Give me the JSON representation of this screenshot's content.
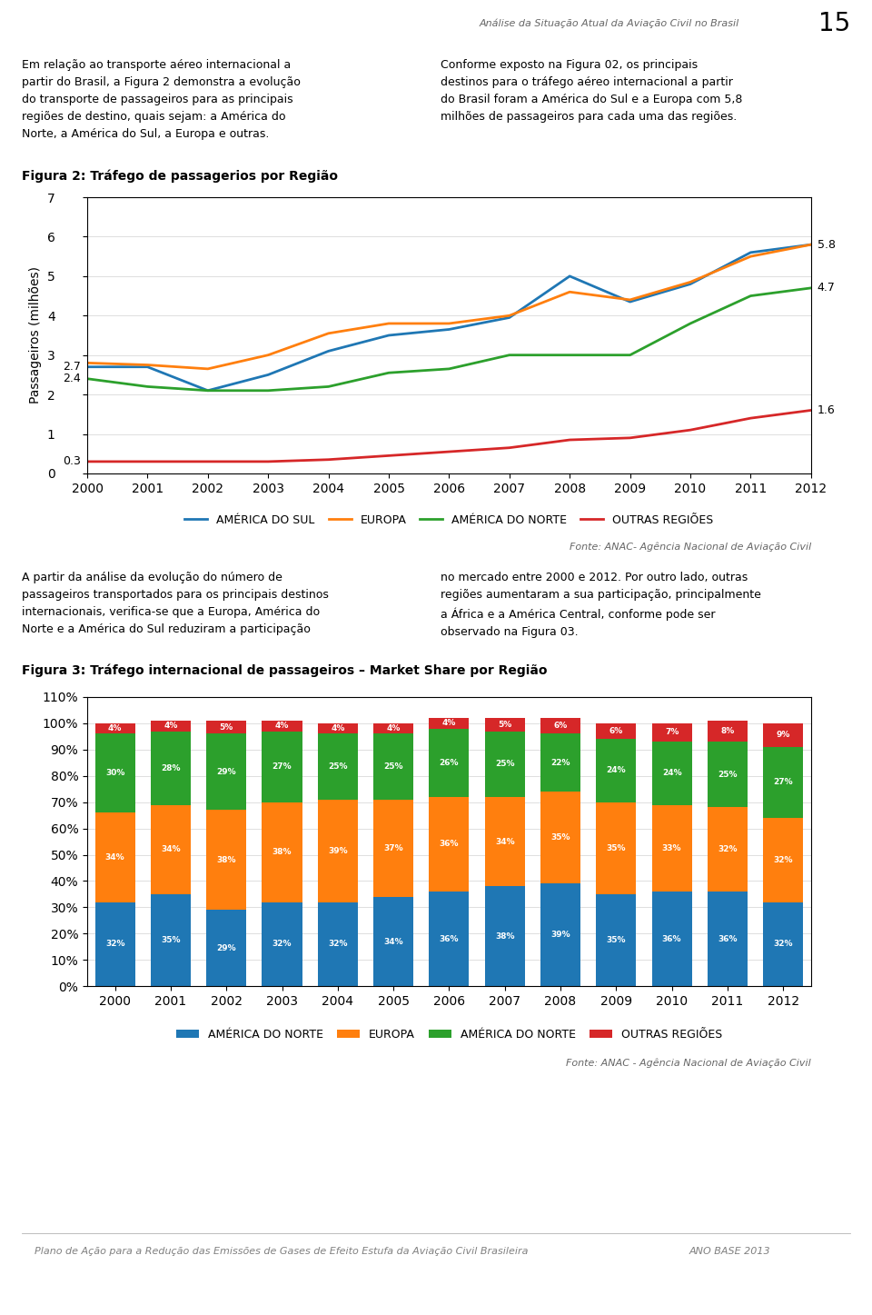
{
  "page": {
    "header": "Análise da Situação Atual da Aviação Civil no Brasil",
    "page_number": "15",
    "text_columns": [
      [
        "Em relação ao transporte aéreo internacional a\npartir do Brasil, a Figura 2 demonstra a evolução\ndo transporte de passageiros para as principais\nregiões de destino, quais sejam: a América do\nNorte, a América do Sul, a Europa e outras.",
        "Conforme exposto na Figura 02, os principais\ndestinos para o tráfego aéreo internacional a partir\ndo Brasil foram a América do Sul e a Europa com 5,8\nmilhões de passageiros para cada uma das regiões."
      ],
      [
        "A partir da análise da evolução do número de\npassageiros transportados para os principais destinos\ninternacionais, verifica-se que a Europa, América do\nNorte e a América do Sul reduziram a participação",
        "no mercado entre 2000 e 2012. Por outro lado, outras\nregiões aumentaram a sua participação, principalmente\na África e a América Central, conforme pode ser\nobservado na Figura 03."
      ]
    ],
    "footer": [
      "Plano de Ação para a Redução das Emissões de Gases de Efeito Estufa da Aviação Civil Brasileira",
      "ANO BASE 2013"
    ]
  },
  "chart_data": [
    {
      "type": "line",
      "title": "Figura 2: Tráfego de passagerios por Região",
      "ylabel": "Passageiros (milhões)",
      "x": [
        2000,
        2001,
        2002,
        2003,
        2004,
        2005,
        2006,
        2007,
        2008,
        2009,
        2010,
        2011,
        2012
      ],
      "xlim": [
        2000,
        2012
      ],
      "xticks": [
        2000,
        2001,
        2002,
        2003,
        2004,
        2005,
        2006,
        2007,
        2008,
        2009,
        2010,
        2011,
        2012
      ],
      "ylim": [
        0,
        7
      ],
      "yticks": [
        0,
        1,
        2,
        3,
        4,
        5,
        6,
        7
      ],
      "grid": true,
      "legend": "upper center",
      "series": [
        {
          "name": "AMÉRICA DO SUL",
          "values": [
            2.7,
            2.7,
            2.1,
            2.5,
            3.1,
            3.5,
            3.65,
            3.95,
            5.0,
            4.35,
            4.8,
            5.6,
            5.8
          ]
        },
        {
          "name": "EUROPA",
          "values": [
            2.8,
            2.75,
            2.65,
            3.0,
            3.55,
            3.8,
            3.8,
            4.0,
            4.6,
            4.4,
            4.85,
            5.5,
            5.8
          ]
        },
        {
          "name": "AMÉRICA DO NORTE",
          "values": [
            2.4,
            2.2,
            2.1,
            2.1,
            2.2,
            2.55,
            2.65,
            3.0,
            3.0,
            3.0,
            3.8,
            4.5,
            4.7
          ]
        },
        {
          "name": "OUTRAS REGIÕES",
          "values": [
            0.3,
            0.3,
            0.3,
            0.3,
            0.35,
            0.45,
            0.55,
            0.65,
            0.85,
            0.9,
            1.1,
            1.4,
            1.6
          ]
        }
      ],
      "annotations": [
        {
          "text": "5.8",
          "x": 2012,
          "y": 5.8
        },
        {
          "text": "4.7",
          "x": 2012,
          "y": 4.7
        },
        {
          "text": "1.6",
          "x": 2012,
          "y": 1.6
        },
        {
          "text": "2.7",
          "x": 2000,
          "y": 2.7
        },
        {
          "text": "2.4",
          "x": 2000,
          "y": 2.4
        },
        {
          "text": "0.3",
          "x": 2000,
          "y": 0.3
        },
        {
          "text": "Fonte: ANAC- Agência Nacional de Aviação Civil"
        }
      ]
    },
    {
      "type": "bar",
      "stacked": true,
      "data_labels": true,
      "title": "Figura 3: Tráfego internacional de passageiros – Market Share por Região",
      "categories": [
        "2000",
        "2001",
        "2002",
        "2003",
        "2004",
        "2005",
        "2006",
        "2007",
        "2008",
        "2009",
        "2010",
        "2011",
        "2012"
      ],
      "ylim": [
        0,
        110
      ],
      "yticks": [
        {
          "value": 0,
          "label": "0%"
        },
        {
          "value": 10,
          "label": "10%"
        },
        {
          "value": 20,
          "label": "20%"
        },
        {
          "value": 30,
          "label": "30%"
        },
        {
          "value": 40,
          "label": "40%"
        },
        {
          "value": 50,
          "label": "50%"
        },
        {
          "value": 60,
          "label": "60%"
        },
        {
          "value": 70,
          "label": "70%"
        },
        {
          "value": 80,
          "label": "80%"
        },
        {
          "value": 90,
          "label": "90%"
        },
        {
          "value": 100,
          "label": "100%"
        },
        {
          "value": 110,
          "label": "110%"
        }
      ],
      "grid": true,
      "legend": "upper center",
      "series": [
        {
          "name": "AMÉRICA DO NORTE",
          "values": [
            32,
            35,
            29,
            32,
            32,
            34,
            36,
            38,
            39,
            35,
            36,
            36,
            32
          ],
          "value_labels": [
            "32%",
            "35%",
            "29%",
            "32%",
            "32%",
            "34%",
            "36%",
            "38%",
            "39%",
            "35%",
            "36%",
            "36%",
            "32%"
          ]
        },
        {
          "name": "EUROPA",
          "values": [
            34,
            34,
            38,
            38,
            39,
            37,
            36,
            34,
            35,
            35,
            33,
            32,
            32
          ],
          "value_labels": [
            "34%",
            "34%",
            "38%",
            "38%",
            "39%",
            "37%",
            "36%",
            "34%",
            "35%",
            "35%",
            "33%",
            "32%",
            "32%"
          ]
        },
        {
          "name": "AMÉRICA DO NORTE",
          "values": [
            30,
            28,
            29,
            27,
            25,
            25,
            26,
            25,
            22,
            24,
            24,
            25,
            27
          ],
          "value_labels": [
            "30%",
            "28%",
            "29%",
            "27%",
            "25%",
            "25%",
            "26%",
            "25%",
            "22%",
            "24%",
            "24%",
            "25%",
            "27%"
          ]
        },
        {
          "name": "OUTRAS REGIÕES",
          "values": [
            4,
            4,
            5,
            4,
            4,
            4,
            4,
            5,
            6,
            6,
            7,
            8,
            9
          ],
          "value_labels": [
            "4%",
            "4%",
            "5%",
            "4%",
            "4%",
            "4%",
            "4%",
            "5%",
            "6%",
            "6%",
            "7%",
            "8%",
            "9%"
          ]
        }
      ],
      "annotations": [
        {
          "text": "Fonte: ANAC - Agência Nacional de Aviação Civil"
        }
      ]
    }
  ]
}
